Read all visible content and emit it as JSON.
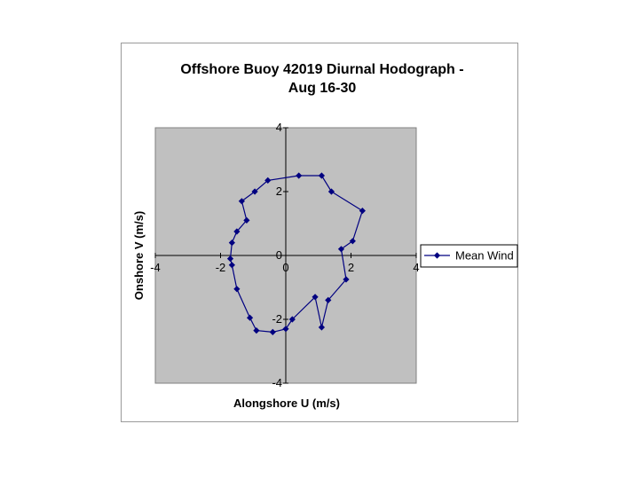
{
  "chart_data": {
    "type": "scatter",
    "title_lines": [
      "Offshore Buoy 42019 Diurnal Hodograph -",
      "Aug 16-30"
    ],
    "xlabel": "Alongshore U (m/s)",
    "ylabel": "Onshore V (m/s)",
    "xlim": [
      -4,
      4
    ],
    "ylim": [
      -4,
      4
    ],
    "xticks": [
      -4,
      -2,
      0,
      2,
      4
    ],
    "yticks": [
      -4,
      -2,
      0,
      2,
      4
    ],
    "xtick_labels": [
      "-4",
      "-2",
      "0",
      "2",
      "4"
    ],
    "ytick_labels": [
      "-4",
      "-2",
      "0",
      "2",
      "4"
    ],
    "grid": false,
    "plot_background": "#c0c0c0",
    "legend_position": "right",
    "series": [
      {
        "name": "Mean Wind",
        "color": "#000080",
        "marker": "diamond",
        "x": [
          0.4,
          1.1,
          1.4,
          2.35,
          2.05,
          1.7,
          1.85,
          1.3,
          1.1,
          0.9,
          0.2,
          0.0,
          -0.4,
          -0.9,
          -1.1,
          -1.5,
          -1.65,
          -1.7,
          -1.65,
          -1.5,
          -1.2,
          -1.35,
          -0.95,
          -0.55
        ],
        "y": [
          2.5,
          2.5,
          2.0,
          1.4,
          0.45,
          0.2,
          -0.75,
          -1.4,
          -2.25,
          -1.3,
          -2.0,
          -2.3,
          -2.4,
          -2.35,
          -1.95,
          -1.05,
          -0.3,
          -0.1,
          0.4,
          0.75,
          1.1,
          1.7,
          2.0,
          2.35
        ]
      }
    ]
  }
}
